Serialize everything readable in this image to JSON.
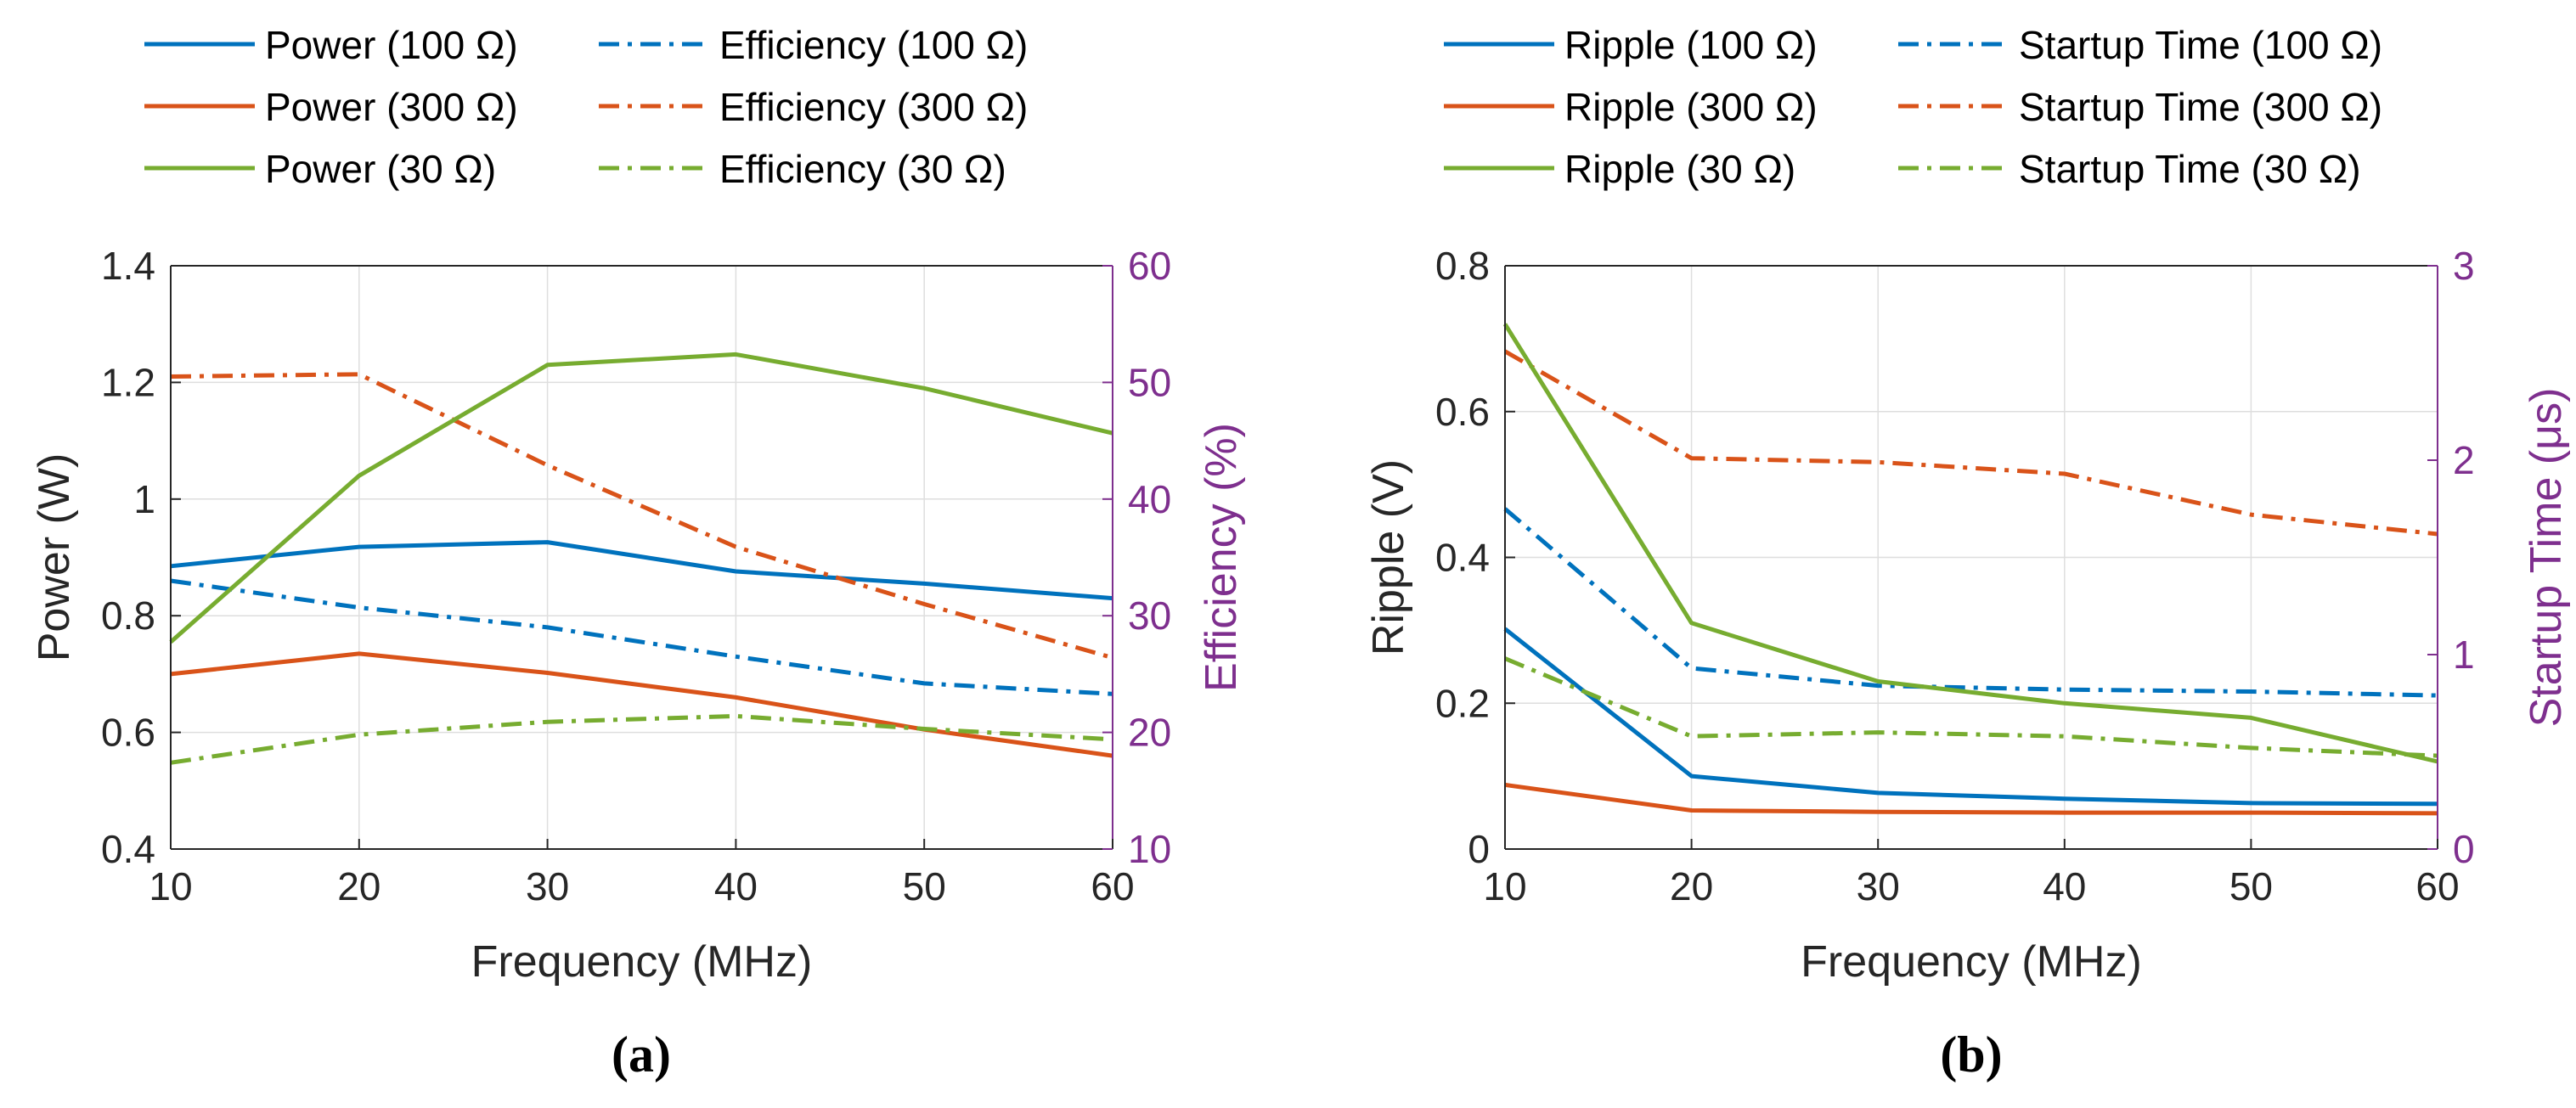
{
  "figure": {
    "panels": [
      "a",
      "b"
    ]
  },
  "chart_data": [
    {
      "id": "a",
      "type": "line",
      "sublabel": "(a)",
      "title": "",
      "xlabel": "Frequency (MHz)",
      "ylabel": "Power (W)",
      "y2label": "Efficiency (%)",
      "x": [
        10,
        20,
        30,
        40,
        50,
        60
      ],
      "xlim": [
        10,
        60
      ],
      "xticks": [
        "10",
        "20",
        "30",
        "40",
        "50",
        "60"
      ],
      "ylim": [
        0.4,
        1.4
      ],
      "yticks": [
        "0.4",
        "0.6",
        "0.8",
        "1",
        "1.2",
        "1.4"
      ],
      "y2lim": [
        10,
        60
      ],
      "y2ticks": [
        "10",
        "20",
        "30",
        "40",
        "50",
        "60"
      ],
      "grid": true,
      "legend_position": "top",
      "series": [
        {
          "name": "Power (100 Ω)",
          "axis": "left",
          "style": "solid",
          "color": "#0072BD",
          "values": [
            0.885,
            0.918,
            0.926,
            0.876,
            0.855,
            0.83
          ]
        },
        {
          "name": "Efficiency (100 Ω)",
          "axis": "right",
          "style": "dashdot",
          "color": "#0072BD",
          "values": [
            33.0,
            30.7,
            29.0,
            26.5,
            24.2,
            23.3
          ]
        },
        {
          "name": "Power (300 Ω)",
          "axis": "left",
          "style": "solid",
          "color": "#D95319",
          "values": [
            0.7,
            0.735,
            0.702,
            0.66,
            0.605,
            0.56
          ]
        },
        {
          "name": "Efficiency (300 Ω)",
          "axis": "right",
          "style": "dashdot",
          "color": "#D95319",
          "values": [
            50.5,
            50.7,
            42.9,
            35.9,
            31.0,
            26.4
          ]
        },
        {
          "name": "Power (30 Ω)",
          "axis": "left",
          "style": "solid",
          "color": "#77AC30",
          "values": [
            0.755,
            1.04,
            1.23,
            1.248,
            1.19,
            1.113
          ]
        },
        {
          "name": "Efficiency (30 Ω)",
          "axis": "right",
          "style": "dashdot",
          "color": "#77AC30",
          "values": [
            17.4,
            19.8,
            20.9,
            21.4,
            20.3,
            19.4
          ]
        }
      ]
    },
    {
      "id": "b",
      "type": "line",
      "sublabel": "(b)",
      "title": "",
      "xlabel": "Frequency (MHz)",
      "ylabel": "Ripple (V)",
      "y2label": "Startup Time (μs)",
      "x": [
        10,
        20,
        30,
        40,
        50,
        60
      ],
      "xlim": [
        10,
        60
      ],
      "xticks": [
        "10",
        "20",
        "30",
        "40",
        "50",
        "60"
      ],
      "ylim": [
        0,
        0.8
      ],
      "yticks": [
        "0",
        "0.2",
        "0.4",
        "0.6",
        "0.8"
      ],
      "y2lim": [
        0,
        3
      ],
      "y2ticks": [
        "0",
        "1",
        "2",
        "3"
      ],
      "grid": true,
      "legend_position": "top",
      "series": [
        {
          "name": "Ripple (100 Ω)",
          "axis": "left",
          "style": "solid",
          "color": "#0072BD",
          "values": [
            0.302,
            0.1,
            0.077,
            0.069,
            0.063,
            0.062
          ]
        },
        {
          "name": "Startup Time (100 Ω)",
          "axis": "right",
          "style": "dashdot",
          "color": "#0072BD",
          "values": [
            1.75,
            0.93,
            0.84,
            0.82,
            0.81,
            0.79
          ]
        },
        {
          "name": "Ripple (300 Ω)",
          "axis": "left",
          "style": "solid",
          "color": "#D95319",
          "values": [
            0.088,
            0.053,
            0.051,
            0.05,
            0.05,
            0.049
          ]
        },
        {
          "name": "Startup Time (300 Ω)",
          "axis": "right",
          "style": "dashdot",
          "color": "#D95319",
          "values": [
            2.56,
            2.01,
            1.99,
            1.93,
            1.72,
            1.62
          ]
        },
        {
          "name": "Ripple (30 Ω)",
          "axis": "left",
          "style": "solid",
          "color": "#77AC30",
          "values": [
            0.72,
            0.31,
            0.23,
            0.2,
            0.18,
            0.12
          ]
        },
        {
          "name": "Startup Time (30 Ω)",
          "axis": "right",
          "style": "dashdot",
          "color": "#77AC30",
          "values": [
            0.98,
            0.58,
            0.6,
            0.58,
            0.52,
            0.48
          ]
        }
      ]
    }
  ]
}
